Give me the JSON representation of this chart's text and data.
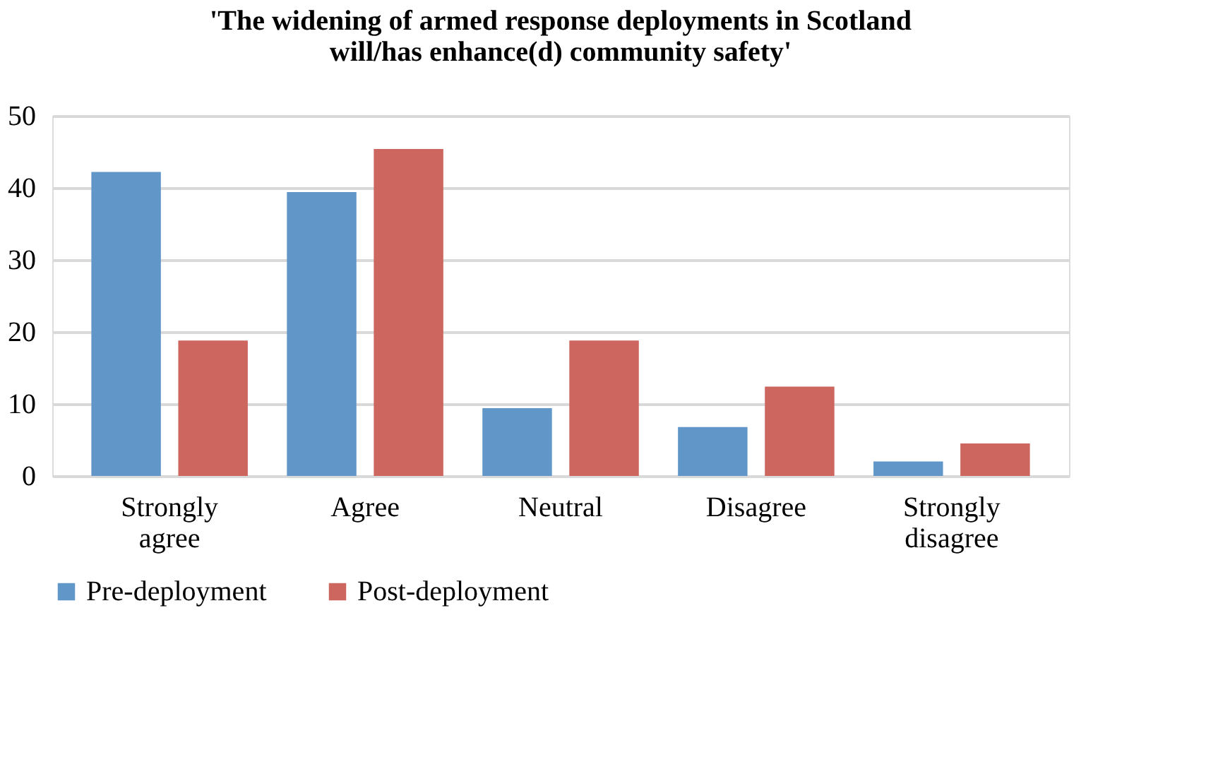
{
  "chart_data": {
    "type": "bar",
    "title": [
      "'The widening of armed response deployments in Scotland",
      "will/has enhance(d) community safety'"
    ],
    "categories": [
      "Strongly agree",
      "Agree",
      "Neutral",
      "Disagree",
      "Strongly disagree"
    ],
    "series": [
      {
        "name": "Pre-deployment",
        "color": "#6196c9",
        "values": [
          42.2,
          39.4,
          9.4,
          6.8,
          2.0
        ]
      },
      {
        "name": "Post-deployment",
        "color": "#cc665f",
        "values": [
          18.8,
          45.4,
          18.8,
          12.4,
          4.5
        ]
      }
    ],
    "ylim": [
      0,
      50
    ],
    "yticks": [
      0,
      10,
      20,
      30,
      40,
      50
    ],
    "grid": "y",
    "legend": "bottom"
  }
}
